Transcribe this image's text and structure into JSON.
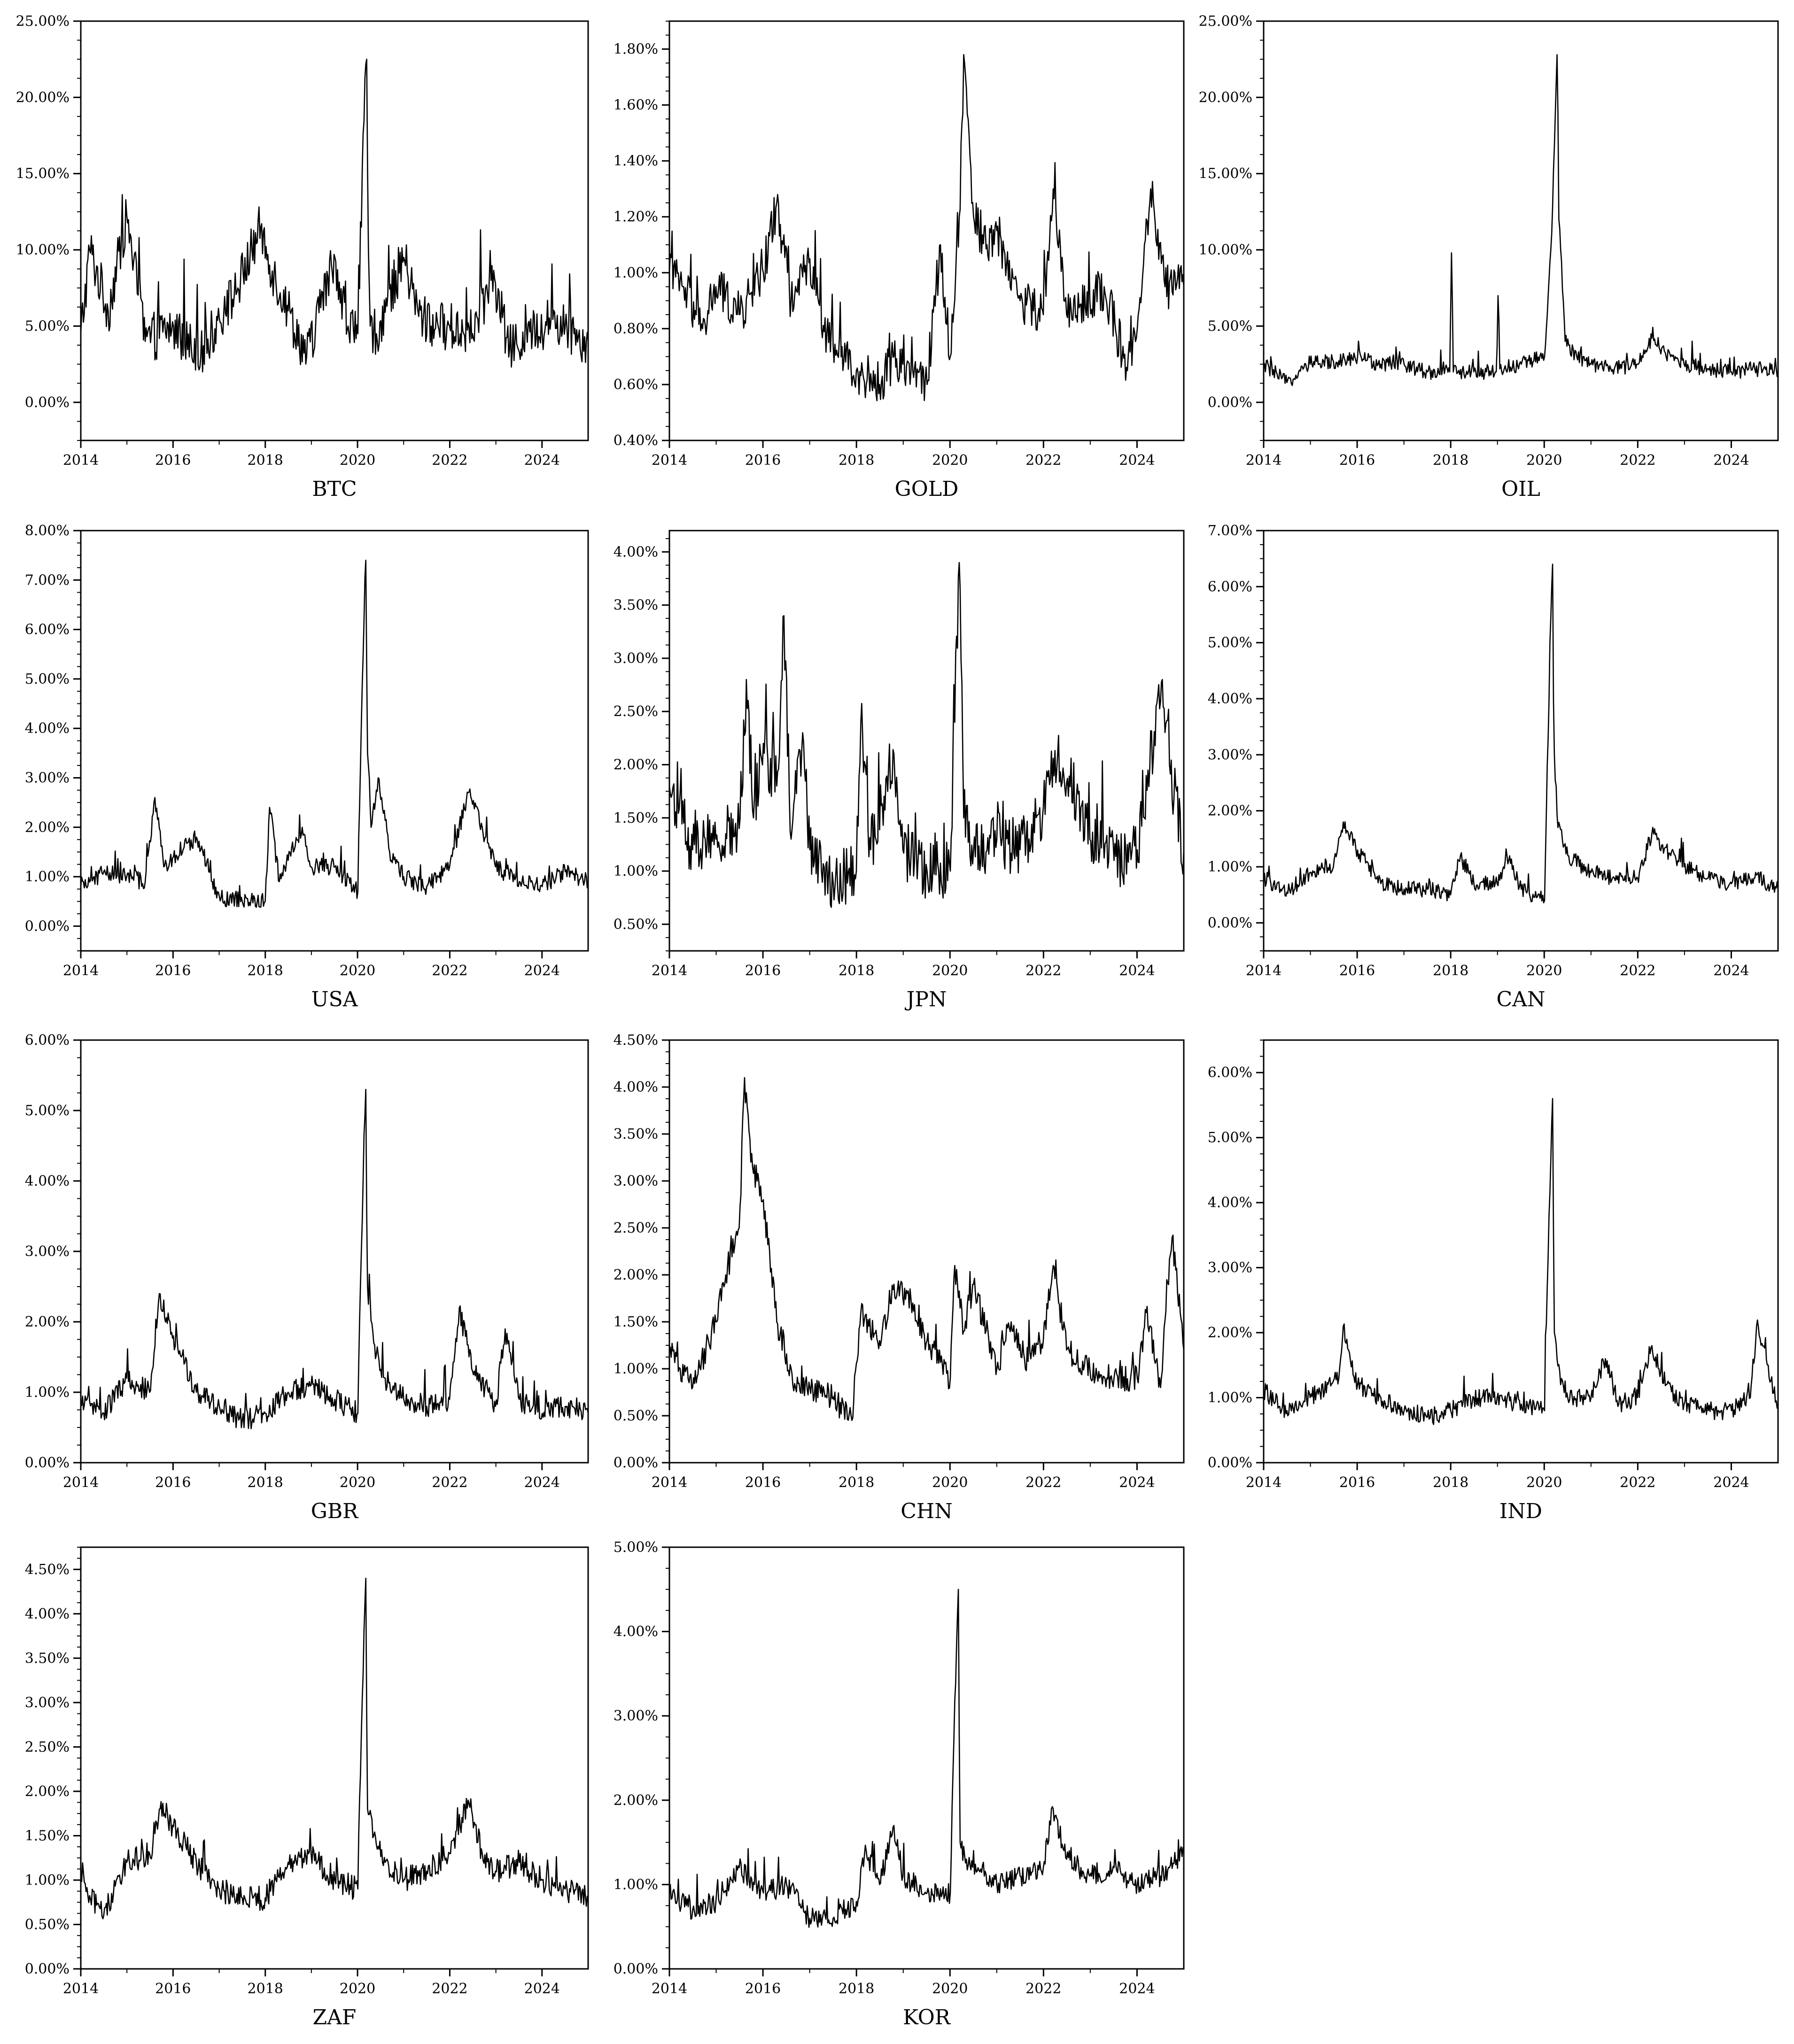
{
  "figure": {
    "line_color": "#000000",
    "background": "#ffffff"
  },
  "chart_data": [
    {
      "type": "line",
      "title": "BTC",
      "x_ticks": [
        "2014",
        "2016",
        "2018",
        "2020",
        "2022",
        "2024"
      ],
      "y_ticks": [
        "0.00%",
        "5.00%",
        "10.00%",
        "15.00%",
        "20.00%",
        "25.00%"
      ],
      "ylim": [
        -2.5,
        25
      ],
      "xlim": [
        2014,
        2025
      ],
      "base": 4.5,
      "noise": 1.6,
      "lo": 1.8,
      "x": [
        2014.0,
        2014.2,
        2014.6,
        2015.0,
        2015.4,
        2016.0,
        2016.6,
        2017.0,
        2017.4,
        2017.9,
        2018.1,
        2018.5,
        2018.9,
        2019.5,
        2019.8,
        2020.0,
        2020.19,
        2020.23,
        2020.27,
        2020.4,
        2021.0,
        2021.3,
        2021.6,
        2022.0,
        2022.5,
        2022.9,
        2023.3,
        2023.8,
        2024.2,
        2024.7,
        2025.0
      ],
      "y": [
        4.5,
        10.0,
        6.0,
        12.3,
        4.0,
        5.0,
        3.0,
        5.5,
        7.5,
        11.5,
        9.0,
        6.0,
        3.0,
        9.5,
        5.0,
        4.5,
        22.5,
        10.0,
        5.0,
        4.5,
        9.5,
        6.0,
        5.0,
        5.0,
        4.5,
        8.0,
        3.5,
        4.5,
        5.5,
        4.5,
        4.0
      ]
    },
    {
      "type": "line",
      "title": "GOLD",
      "x_ticks": [
        "2014",
        "2016",
        "2018",
        "2020",
        "2022",
        "2024"
      ],
      "y_ticks": [
        "0.40%",
        "0.60%",
        "0.80%",
        "1.00%",
        "1.20%",
        "1.40%",
        "1.60%",
        "1.80%"
      ],
      "ylim": [
        0.4,
        1.9
      ],
      "xlim": [
        2014,
        2025
      ],
      "base": 0.85,
      "noise": 0.08,
      "lo": 0.52,
      "x": [
        2014.0,
        2014.3,
        2014.7,
        2015.0,
        2015.5,
        2016.0,
        2016.3,
        2016.6,
        2017.0,
        2017.4,
        2018.0,
        2018.5,
        2018.8,
        2019.2,
        2019.5,
        2019.8,
        2020.0,
        2020.2,
        2020.3,
        2020.5,
        2020.8,
        2021.0,
        2021.5,
        2022.0,
        2022.2,
        2022.5,
        2023.0,
        2023.3,
        2023.8,
        2024.0,
        2024.3,
        2024.6,
        2025.0
      ],
      "y": [
        1.0,
        0.95,
        0.8,
        0.95,
        0.85,
        1.0,
        1.25,
        0.9,
        1.05,
        0.75,
        0.65,
        0.6,
        0.7,
        0.65,
        0.6,
        1.1,
        0.7,
        1.2,
        1.78,
        1.2,
        1.1,
        1.15,
        0.9,
        0.85,
        1.3,
        0.85,
        0.9,
        0.95,
        0.65,
        0.8,
        1.3,
        0.95,
        0.95
      ]
    },
    {
      "type": "line",
      "title": "OIL",
      "x_ticks": [
        "2014",
        "2016",
        "2018",
        "2020",
        "2022",
        "2024"
      ],
      "y_ticks": [
        "0.00%",
        "5.00%",
        "10.00%",
        "15.00%",
        "20.00%",
        "25.00%"
      ],
      "ylim": [
        -2.5,
        25
      ],
      "xlim": [
        2014,
        2025
      ],
      "base": 2.2,
      "noise": 0.5,
      "lo": 1.1,
      "x": [
        2014.0,
        2014.5,
        2015.0,
        2015.5,
        2016.0,
        2016.5,
        2017.0,
        2017.5,
        2017.98,
        2018.02,
        2018.06,
        2018.5,
        2018.98,
        2019.02,
        2019.06,
        2019.5,
        2020.0,
        2020.15,
        2020.28,
        2020.32,
        2020.45,
        2020.7,
        2021.0,
        2021.5,
        2022.0,
        2022.3,
        2022.7,
        2023.0,
        2023.5,
        2024.0,
        2024.5,
        2025.0
      ],
      "y": [
        2.5,
        1.3,
        2.5,
        2.7,
        3.0,
        2.5,
        2.5,
        2.0,
        2.0,
        9.8,
        2.0,
        2.0,
        2.0,
        7.0,
        2.2,
        2.5,
        3.0,
        10.0,
        22.8,
        12.0,
        4.0,
        3.0,
        2.5,
        2.2,
        2.5,
        4.2,
        3.0,
        2.5,
        2.2,
        2.0,
        2.2,
        2.0
      ]
    },
    {
      "type": "line",
      "title": "USA",
      "x_ticks": [
        "2014",
        "2016",
        "2018",
        "2020",
        "2022",
        "2024"
      ],
      "y_ticks": [
        "0.00%",
        "1.00%",
        "2.00%",
        "3.00%",
        "4.00%",
        "5.00%",
        "6.00%",
        "7.00%",
        "8.00%"
      ],
      "ylim": [
        -0.5,
        8
      ],
      "xlim": [
        2014,
        2025
      ],
      "base": 0.8,
      "noise": 0.18,
      "lo": 0.38,
      "x": [
        2014.0,
        2014.5,
        2015.0,
        2015.4,
        2015.6,
        2015.8,
        2016.0,
        2016.5,
        2017.0,
        2017.5,
        2018.0,
        2018.1,
        2018.3,
        2018.8,
        2019.0,
        2019.5,
        2020.0,
        2020.17,
        2020.22,
        2020.3,
        2020.45,
        2020.7,
        2021.0,
        2021.5,
        2022.0,
        2022.4,
        2022.7,
        2023.0,
        2023.5,
        2024.0,
        2024.5,
        2025.0
      ],
      "y": [
        0.8,
        1.1,
        1.0,
        0.9,
        2.6,
        1.2,
        1.4,
        1.8,
        0.6,
        0.5,
        0.5,
        2.4,
        0.9,
        2.0,
        1.2,
        1.2,
        0.7,
        7.4,
        3.5,
        2.0,
        3.0,
        1.5,
        1.0,
        0.8,
        1.2,
        2.7,
        2.0,
        1.2,
        0.9,
        0.8,
        1.1,
        0.9
      ]
    },
    {
      "type": "line",
      "title": "JPN",
      "x_ticks": [
        "2014",
        "2016",
        "2018",
        "2020",
        "2022",
        "2024"
      ],
      "y_ticks": [
        "0.50%",
        "1.00%",
        "1.50%",
        "2.00%",
        "2.50%",
        "3.00%",
        "3.50%",
        "4.00%"
      ],
      "ylim": [
        0.25,
        4.2
      ],
      "xlim": [
        2014,
        2025
      ],
      "base": 1.15,
      "noise": 0.28,
      "lo": 0.65,
      "x": [
        2014.0,
        2014.5,
        2015.0,
        2015.5,
        2015.65,
        2015.8,
        2016.0,
        2016.3,
        2016.45,
        2016.6,
        2016.85,
        2017.0,
        2017.5,
        2018.0,
        2018.1,
        2018.3,
        2018.8,
        2019.0,
        2019.5,
        2020.0,
        2020.2,
        2020.3,
        2020.5,
        2021.0,
        2021.5,
        2022.0,
        2022.3,
        2022.7,
        2023.0,
        2023.5,
        2024.0,
        2024.55,
        2024.7,
        2025.0
      ],
      "y": [
        1.8,
        1.2,
        1.3,
        1.4,
        2.8,
        1.5,
        2.2,
        1.8,
        3.4,
        1.3,
        2.3,
        1.2,
        0.9,
        1.0,
        2.4,
        1.2,
        2.1,
        1.2,
        1.0,
        1.0,
        3.9,
        1.5,
        1.2,
        1.3,
        1.2,
        1.6,
        2.1,
        1.7,
        1.3,
        1.1,
        1.2,
        2.8,
        2.0,
        1.2
      ]
    },
    {
      "type": "line",
      "title": "CAN",
      "x_ticks": [
        "2014",
        "2016",
        "2018",
        "2020",
        "2022",
        "2024"
      ],
      "y_ticks": [
        "0.00%",
        "1.00%",
        "2.00%",
        "3.00%",
        "4.00%",
        "5.00%",
        "6.00%",
        "7.00%"
      ],
      "ylim": [
        -0.5,
        7
      ],
      "xlim": [
        2014,
        2025
      ],
      "base": 0.65,
      "noise": 0.14,
      "lo": 0.35,
      "x": [
        2014.0,
        2014.5,
        2015.0,
        2015.5,
        2015.7,
        2016.0,
        2016.5,
        2017.0,
        2017.5,
        2018.0,
        2018.2,
        2018.5,
        2019.0,
        2019.2,
        2019.5,
        2020.0,
        2020.17,
        2020.21,
        2020.3,
        2020.5,
        2021.0,
        2021.5,
        2022.0,
        2022.3,
        2022.7,
        2023.0,
        2023.5,
        2024.0,
        2024.5,
        2025.0
      ],
      "y": [
        0.8,
        0.55,
        0.9,
        1.0,
        1.8,
        1.3,
        0.7,
        0.6,
        0.6,
        0.5,
        1.2,
        0.7,
        0.7,
        1.2,
        0.6,
        0.4,
        6.4,
        3.0,
        1.7,
        1.2,
        0.9,
        0.8,
        0.8,
        1.6,
        1.2,
        1.0,
        0.8,
        0.7,
        0.8,
        0.6
      ]
    },
    {
      "type": "line",
      "title": "GBR",
      "x_ticks": [
        "2014",
        "2016",
        "2018",
        "2020",
        "2022",
        "2024"
      ],
      "y_ticks": [
        "0.00%",
        "1.00%",
        "2.00%",
        "3.00%",
        "4.00%",
        "5.00%",
        "6.00%"
      ],
      "ylim": [
        0,
        6
      ],
      "xlim": [
        2014,
        2025
      ],
      "base": 0.75,
      "noise": 0.16,
      "lo": 0.42,
      "x": [
        2014.0,
        2014.5,
        2015.0,
        2015.5,
        2015.7,
        2016.0,
        2016.5,
        2017.0,
        2017.5,
        2018.0,
        2018.5,
        2019.0,
        2019.5,
        2020.0,
        2020.17,
        2020.22,
        2020.35,
        2020.6,
        2021.0,
        2021.5,
        2022.0,
        2022.2,
        2022.5,
        2023.0,
        2023.2,
        2023.5,
        2024.0,
        2024.5,
        2025.0
      ],
      "y": [
        0.9,
        0.7,
        1.2,
        1.0,
        2.4,
        1.8,
        1.0,
        0.8,
        0.6,
        0.7,
        1.0,
        1.1,
        0.9,
        0.7,
        5.3,
        2.5,
        1.7,
        1.2,
        0.9,
        0.8,
        0.9,
        2.2,
        1.3,
        0.8,
        1.9,
        0.9,
        0.7,
        0.8,
        0.7
      ]
    },
    {
      "type": "line",
      "title": "CHN",
      "x_ticks": [
        "2014",
        "2016",
        "2018",
        "2020",
        "2022",
        "2024"
      ],
      "y_ticks": [
        "0.00%",
        "0.50%",
        "1.00%",
        "1.50%",
        "2.00%",
        "2.50%",
        "3.00%",
        "3.50%",
        "4.00%",
        "4.50%"
      ],
      "ylim": [
        0,
        4.5
      ],
      "xlim": [
        2014,
        2025
      ],
      "base": 0.95,
      "noise": 0.14,
      "lo": 0.45,
      "x": [
        2014.0,
        2014.5,
        2015.0,
        2015.2,
        2015.5,
        2015.6,
        2015.75,
        2016.0,
        2016.3,
        2016.7,
        2017.0,
        2017.5,
        2017.9,
        2018.1,
        2018.5,
        2018.8,
        2019.2,
        2019.5,
        2020.0,
        2020.1,
        2020.3,
        2020.5,
        2021.0,
        2021.3,
        2021.6,
        2022.0,
        2022.2,
        2022.5,
        2023.0,
        2023.5,
        2024.0,
        2024.2,
        2024.5,
        2024.75,
        2025.0
      ],
      "y": [
        1.2,
        0.8,
        1.5,
        2.0,
        2.5,
        4.1,
        3.2,
        2.8,
        1.5,
        0.8,
        0.8,
        0.7,
        0.45,
        1.6,
        1.3,
        1.9,
        1.7,
        1.3,
        0.9,
        2.1,
        1.4,
        1.9,
        1.0,
        1.5,
        1.1,
        1.3,
        2.1,
        1.2,
        1.0,
        0.9,
        0.9,
        1.6,
        0.8,
        2.4,
        1.2
      ]
    },
    {
      "type": "line",
      "title": "IND",
      "x_ticks": [
        "2014",
        "2016",
        "2018",
        "2020",
        "2022",
        "2024"
      ],
      "y_ticks": [
        "0.00%",
        "1.00%",
        "2.00%",
        "3.00%",
        "4.00%",
        "5.00%",
        "6.00%"
      ],
      "ylim": [
        0,
        6.5
      ],
      "xlim": [
        2014,
        2025
      ],
      "base": 0.85,
      "noise": 0.14,
      "lo": 0.5,
      "x": [
        2014.0,
        2014.5,
        2015.0,
        2015.6,
        2015.7,
        2016.0,
        2016.5,
        2017.0,
        2017.5,
        2018.0,
        2018.5,
        2019.0,
        2019.5,
        2020.0,
        2020.17,
        2020.22,
        2020.35,
        2020.6,
        2021.0,
        2021.3,
        2021.6,
        2022.0,
        2022.3,
        2022.6,
        2023.0,
        2023.5,
        2024.0,
        2024.4,
        2024.55,
        2025.0
      ],
      "y": [
        1.1,
        0.8,
        1.0,
        1.3,
        2.1,
        1.2,
        1.0,
        0.8,
        0.7,
        0.8,
        1.0,
        1.0,
        0.9,
        0.8,
        5.6,
        2.0,
        1.2,
        1.0,
        1.0,
        1.6,
        0.9,
        1.0,
        1.8,
        1.2,
        0.9,
        0.8,
        0.8,
        1.0,
        2.1,
        0.9
      ]
    },
    {
      "type": "line",
      "title": "ZAF",
      "x_ticks": [
        "2014",
        "2016",
        "2018",
        "2020",
        "2022",
        "2024"
      ],
      "y_ticks": [
        "0.00%",
        "0.50%",
        "1.00%",
        "1.50%",
        "2.00%",
        "2.50%",
        "3.00%",
        "3.50%",
        "4.00%",
        "4.50%"
      ],
      "ylim": [
        0,
        4.75
      ],
      "xlim": [
        2014,
        2025
      ],
      "base": 0.95,
      "noise": 0.14,
      "lo": 0.55,
      "x": [
        2014.0,
        2014.5,
        2015.0,
        2015.5,
        2015.7,
        2016.0,
        2016.5,
        2017.0,
        2017.5,
        2018.0,
        2018.5,
        2019.0,
        2019.5,
        2020.0,
        2020.17,
        2020.22,
        2020.35,
        2020.6,
        2021.0,
        2021.5,
        2022.0,
        2022.4,
        2022.7,
        2023.0,
        2023.5,
        2024.0,
        2024.5,
        2025.0
      ],
      "y": [
        1.0,
        0.6,
        1.2,
        1.3,
        1.8,
        1.6,
        1.2,
        0.9,
        0.8,
        0.8,
        1.2,
        1.3,
        1.0,
        0.9,
        4.4,
        1.8,
        1.5,
        1.2,
        1.0,
        1.1,
        1.3,
        1.9,
        1.3,
        1.1,
        1.2,
        1.0,
        0.9,
        0.8
      ]
    },
    {
      "type": "line",
      "title": "KOR",
      "x_ticks": [
        "2014",
        "2016",
        "2018",
        "2020",
        "2022",
        "2024"
      ],
      "y_ticks": [
        "0.00%",
        "1.00%",
        "2.00%",
        "3.00%",
        "4.00%",
        "5.00%"
      ],
      "ylim": [
        0,
        5
      ],
      "xlim": [
        2014,
        2025
      ],
      "base": 0.8,
      "noise": 0.13,
      "lo": 0.45,
      "x": [
        2014.0,
        2014.5,
        2015.0,
        2015.5,
        2016.0,
        2016.5,
        2017.0,
        2017.5,
        2018.0,
        2018.2,
        2018.5,
        2018.8,
        2019.0,
        2019.5,
        2020.0,
        2020.17,
        2020.22,
        2020.35,
        2020.6,
        2021.0,
        2021.5,
        2022.0,
        2022.2,
        2022.5,
        2023.0,
        2023.5,
        2024.0,
        2024.5,
        2025.0
      ],
      "y": [
        0.9,
        0.7,
        0.8,
        1.2,
        0.9,
        1.0,
        0.6,
        0.6,
        0.8,
        1.4,
        1.0,
        1.7,
        1.1,
        0.9,
        0.9,
        4.5,
        1.5,
        1.3,
        1.2,
        1.0,
        1.1,
        1.2,
        1.9,
        1.3,
        1.1,
        1.2,
        1.0,
        1.1,
        1.4
      ]
    }
  ]
}
